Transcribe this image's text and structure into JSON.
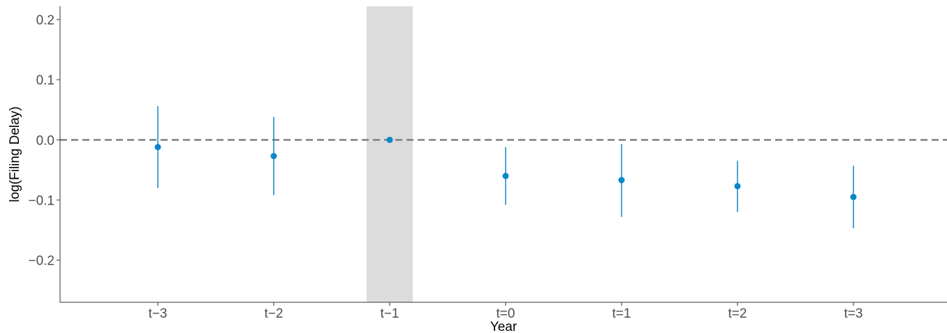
{
  "chart_data": {
    "type": "scatter",
    "title": "",
    "xlabel": "Year",
    "ylabel": "log(Filing Delay)",
    "categories": [
      "t−3",
      "t−2",
      "t−1",
      "t=0",
      "t=1",
      "t=2",
      "t=3"
    ],
    "estimates": [
      -0.012,
      -0.027,
      0.0,
      -0.06,
      -0.067,
      -0.077,
      -0.095
    ],
    "ci_lower": [
      -0.08,
      -0.092,
      0.0,
      -0.108,
      -0.128,
      -0.12,
      -0.147
    ],
    "ci_upper": [
      0.056,
      0.038,
      0.0,
      -0.012,
      -0.007,
      -0.035,
      -0.043
    ],
    "ylim": [
      -0.27,
      0.222
    ],
    "yticks": [
      0.2,
      0.1,
      0.0,
      -0.1,
      -0.2
    ],
    "ytick_labels": [
      "0.2",
      "0.1",
      "0.0",
      "−0.1",
      "−0.2"
    ],
    "reference_line": 0.0,
    "reference_category": "t−1",
    "grid": false,
    "colors": {
      "point": "#0a87c9",
      "reference_line": "#7f7f7f",
      "shading": "#dcdcdc"
    }
  }
}
